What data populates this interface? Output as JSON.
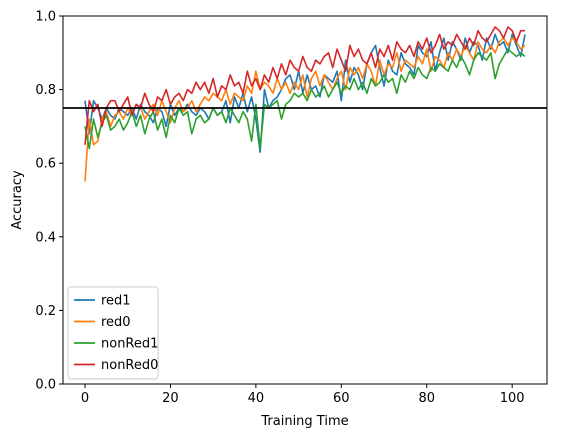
{
  "chart_data": {
    "type": "line",
    "title": "",
    "xlabel": "Training Time",
    "ylabel": "Accuracy",
    "xlim": [
      -5.15,
      108.15
    ],
    "ylim": [
      0,
      1
    ],
    "xticks": [
      0,
      20,
      40,
      60,
      80,
      100
    ],
    "yticks": [
      0.0,
      0.2,
      0.4,
      0.6,
      0.8,
      1.0
    ],
    "xtick_labels": [
      "0",
      "20",
      "40",
      "60",
      "80",
      "100"
    ],
    "ytick_labels": [
      "0.0",
      "0.2",
      "0.4",
      "0.6",
      "0.8",
      "1.0"
    ],
    "grid": false,
    "legend_position": "lower-left",
    "hline": {
      "y": 0.75,
      "color": "#000000"
    },
    "x": [
      0,
      1,
      2,
      3,
      4,
      5,
      6,
      7,
      8,
      9,
      10,
      11,
      12,
      13,
      14,
      15,
      16,
      17,
      18,
      19,
      20,
      21,
      22,
      23,
      24,
      25,
      26,
      27,
      28,
      29,
      30,
      31,
      32,
      33,
      34,
      35,
      36,
      37,
      38,
      39,
      40,
      41,
      42,
      43,
      44,
      45,
      46,
      47,
      48,
      49,
      50,
      51,
      52,
      53,
      54,
      55,
      56,
      57,
      58,
      59,
      60,
      61,
      62,
      63,
      64,
      65,
      66,
      67,
      68,
      69,
      70,
      71,
      72,
      73,
      74,
      75,
      76,
      77,
      78,
      79,
      80,
      81,
      82,
      83,
      84,
      85,
      86,
      87,
      88,
      89,
      90,
      91,
      92,
      93,
      94,
      95,
      96,
      97,
      98,
      99,
      100,
      101,
      102,
      103
    ],
    "series": [
      {
        "name": "red1",
        "color": "#1f77b4",
        "values": [
          0.77,
          0.68,
          0.77,
          0.75,
          0.72,
          0.75,
          0.73,
          0.72,
          0.75,
          0.74,
          0.73,
          0.75,
          0.72,
          0.76,
          0.74,
          0.73,
          0.71,
          0.75,
          0.74,
          0.7,
          0.76,
          0.73,
          0.75,
          0.74,
          0.76,
          0.74,
          0.73,
          0.75,
          0.74,
          0.72,
          0.75,
          0.73,
          0.74,
          0.77,
          0.71,
          0.78,
          0.75,
          0.79,
          0.74,
          0.78,
          0.72,
          0.63,
          0.8,
          0.75,
          0.77,
          0.78,
          0.8,
          0.83,
          0.84,
          0.8,
          0.85,
          0.79,
          0.84,
          0.8,
          0.81,
          0.78,
          0.84,
          0.83,
          0.82,
          0.85,
          0.77,
          0.88,
          0.82,
          0.86,
          0.84,
          0.8,
          0.87,
          0.9,
          0.92,
          0.86,
          0.81,
          0.88,
          0.85,
          0.84,
          0.9,
          0.87,
          0.86,
          0.84,
          0.92,
          0.9,
          0.89,
          0.93,
          0.85,
          0.9,
          0.94,
          0.88,
          0.93,
          0.91,
          0.88,
          0.94,
          0.9,
          0.93,
          0.92,
          0.88,
          0.94,
          0.91,
          0.95,
          0.92,
          0.93,
          0.9,
          0.95,
          0.92,
          0.89,
          0.95
        ]
      },
      {
        "name": "red0",
        "color": "#ff7f0e",
        "values": [
          0.55,
          0.72,
          0.65,
          0.66,
          0.72,
          0.74,
          0.7,
          0.73,
          0.74,
          0.72,
          0.75,
          0.73,
          0.76,
          0.75,
          0.72,
          0.74,
          0.76,
          0.73,
          0.77,
          0.74,
          0.71,
          0.75,
          0.77,
          0.74,
          0.75,
          0.77,
          0.74,
          0.76,
          0.78,
          0.77,
          0.79,
          0.78,
          0.77,
          0.8,
          0.76,
          0.79,
          0.78,
          0.77,
          0.81,
          0.79,
          0.85,
          0.8,
          0.82,
          0.81,
          0.79,
          0.83,
          0.8,
          0.82,
          0.79,
          0.82,
          0.8,
          0.84,
          0.78,
          0.83,
          0.85,
          0.81,
          0.84,
          0.82,
          0.8,
          0.83,
          0.85,
          0.8,
          0.86,
          0.84,
          0.86,
          0.83,
          0.87,
          0.85,
          0.81,
          0.88,
          0.84,
          0.87,
          0.86,
          0.9,
          0.85,
          0.88,
          0.87,
          0.86,
          0.89,
          0.87,
          0.91,
          0.85,
          0.89,
          0.88,
          0.86,
          0.9,
          0.88,
          0.91,
          0.89,
          0.92,
          0.9,
          0.88,
          0.93,
          0.91,
          0.9,
          0.92,
          0.9,
          0.93,
          0.94,
          0.92,
          0.94,
          0.93,
          0.91,
          0.92
        ]
      },
      {
        "name": "nonRed1",
        "color": "#2ca02c",
        "values": [
          0.7,
          0.64,
          0.72,
          0.67,
          0.71,
          0.73,
          0.69,
          0.7,
          0.72,
          0.69,
          0.71,
          0.74,
          0.7,
          0.73,
          0.68,
          0.72,
          0.74,
          0.69,
          0.72,
          0.67,
          0.73,
          0.71,
          0.75,
          0.73,
          0.74,
          0.68,
          0.72,
          0.73,
          0.71,
          0.72,
          0.75,
          0.73,
          0.74,
          0.71,
          0.75,
          0.73,
          0.71,
          0.74,
          0.72,
          0.66,
          0.76,
          0.64,
          0.76,
          0.75,
          0.76,
          0.77,
          0.72,
          0.76,
          0.77,
          0.79,
          0.78,
          0.79,
          0.77,
          0.8,
          0.78,
          0.79,
          0.81,
          0.78,
          0.8,
          0.82,
          0.79,
          0.81,
          0.8,
          0.83,
          0.8,
          0.82,
          0.79,
          0.83,
          0.81,
          0.82,
          0.84,
          0.82,
          0.83,
          0.79,
          0.84,
          0.82,
          0.85,
          0.83,
          0.86,
          0.84,
          0.83,
          0.86,
          0.85,
          0.87,
          0.86,
          0.85,
          0.88,
          0.86,
          0.89,
          0.87,
          0.84,
          0.88,
          0.9,
          0.89,
          0.88,
          0.9,
          0.83,
          0.87,
          0.89,
          0.91,
          0.9,
          0.89,
          0.9,
          0.89
        ]
      },
      {
        "name": "nonRed0",
        "color": "#d62728",
        "values": [
          0.65,
          0.77,
          0.74,
          0.76,
          0.7,
          0.75,
          0.77,
          0.77,
          0.74,
          0.76,
          0.78,
          0.73,
          0.76,
          0.75,
          0.79,
          0.76,
          0.74,
          0.78,
          0.77,
          0.8,
          0.76,
          0.78,
          0.79,
          0.77,
          0.8,
          0.79,
          0.82,
          0.8,
          0.82,
          0.79,
          0.83,
          0.78,
          0.81,
          0.8,
          0.84,
          0.81,
          0.82,
          0.79,
          0.85,
          0.81,
          0.83,
          0.8,
          0.84,
          0.82,
          0.86,
          0.83,
          0.87,
          0.84,
          0.88,
          0.86,
          0.85,
          0.89,
          0.86,
          0.85,
          0.88,
          0.87,
          0.89,
          0.9,
          0.86,
          0.91,
          0.88,
          0.85,
          0.92,
          0.89,
          0.91,
          0.88,
          0.87,
          0.9,
          0.86,
          0.91,
          0.89,
          0.92,
          0.88,
          0.93,
          0.91,
          0.9,
          0.92,
          0.89,
          0.93,
          0.91,
          0.94,
          0.9,
          0.92,
          0.95,
          0.91,
          0.93,
          0.92,
          0.95,
          0.93,
          0.91,
          0.94,
          0.92,
          0.96,
          0.94,
          0.93,
          0.95,
          0.97,
          0.96,
          0.94,
          0.97,
          0.96,
          0.93,
          0.96,
          0.96
        ]
      }
    ]
  }
}
